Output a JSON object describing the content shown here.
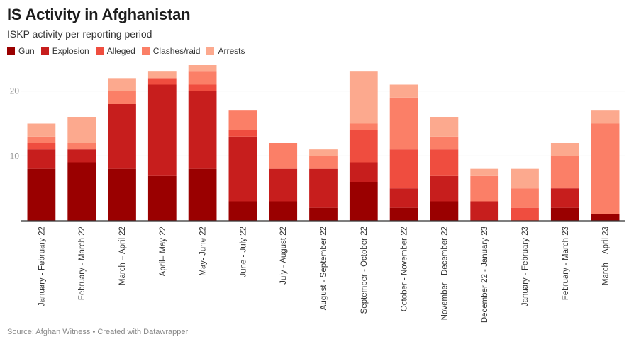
{
  "title": "IS Activity in Afghanistan",
  "subtitle": "ISKP activity per reporting period",
  "footer": "Source: Afghan Witness • Created with Datawrapper",
  "chart_data": {
    "type": "bar",
    "stacked": true,
    "categories": [
      "January - February 22",
      "February - March 22",
      "March – April 22",
      "April– May 22",
      "May- June 22",
      "June - July 22",
      "July - August 22",
      "August - September 22",
      "September - October 22",
      "October - November 22",
      "November - December 22",
      "December 22 - January 23",
      "January - February 23",
      "February - March 23",
      "March – April 23"
    ],
    "series": [
      {
        "name": "Gun",
        "color": "#9a0000",
        "values": [
          8,
          9,
          8,
          7,
          8,
          3,
          3,
          2,
          6,
          2,
          3,
          0,
          0,
          2,
          1
        ]
      },
      {
        "name": "Explosion",
        "color": "#c71e1d",
        "values": [
          3,
          2,
          10,
          14,
          12,
          10,
          5,
          6,
          3,
          3,
          4,
          3,
          0,
          3,
          0
        ]
      },
      {
        "name": "Alleged",
        "color": "#ef4d3f",
        "values": [
          1,
          0,
          0,
          1,
          1,
          1,
          0,
          0,
          5,
          6,
          4,
          0,
          2,
          0,
          0
        ]
      },
      {
        "name": "Clashes/raid",
        "color": "#fb7f67",
        "values": [
          1,
          1,
          2,
          0,
          2,
          3,
          4,
          2,
          1,
          8,
          2,
          4,
          3,
          5,
          14
        ]
      },
      {
        "name": "Arrests",
        "color": "#fca98e",
        "values": [
          2,
          4,
          2,
          1,
          1,
          0,
          0,
          1,
          8,
          2,
          3,
          1,
          3,
          2,
          2
        ]
      }
    ],
    "ylim": [
      0,
      24
    ],
    "yticks": [
      10,
      20
    ],
    "grid": true,
    "legend_position": "top-left"
  }
}
